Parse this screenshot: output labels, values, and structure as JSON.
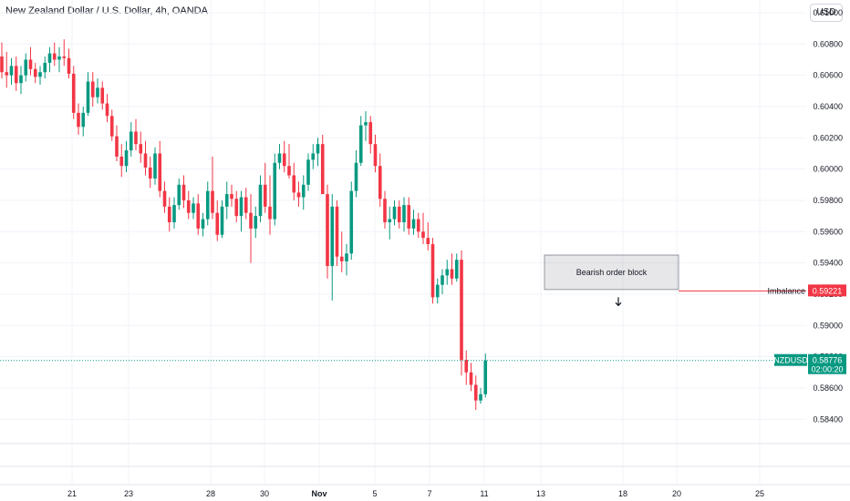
{
  "header": {
    "title": "New Zealand Dollar / U.S. Dollar, 4h, OANDA",
    "currency_button": "USD"
  },
  "chart_data": {
    "type": "candlestick",
    "title": "New Zealand Dollar / U.S. Dollar, 4h, OANDA",
    "ylim": [
      0.5825,
      0.61
    ],
    "y_ticks": [
      "0.61000",
      "0.60800",
      "0.60600",
      "0.60400",
      "0.60200",
      "0.60000",
      "0.59800",
      "0.59600",
      "0.59400",
      "0.59200",
      "0.59000",
      "0.58800",
      "0.58600",
      "0.58400"
    ],
    "x_ticks": [
      "21",
      "23",
      "28",
      "30",
      "Nov",
      "5",
      "7",
      "11",
      "13",
      "18",
      "20",
      "25"
    ],
    "grid": true,
    "colors": {
      "up": "#089981",
      "down": "#f23645",
      "grid": "#f0f3fa",
      "axis_text": "#131722"
    },
    "candles": [
      [
        0.6072,
        0.6081,
        0.6058,
        0.6062
      ],
      [
        0.6062,
        0.6075,
        0.6052,
        0.606
      ],
      [
        0.606,
        0.6071,
        0.6054,
        0.6066
      ],
      [
        0.6066,
        0.6072,
        0.605,
        0.6055
      ],
      [
        0.6055,
        0.6066,
        0.6048,
        0.606
      ],
      [
        0.606,
        0.6074,
        0.6056,
        0.607
      ],
      [
        0.607,
        0.6078,
        0.606,
        0.6064
      ],
      [
        0.6064,
        0.6068,
        0.6055,
        0.6059
      ],
      [
        0.6059,
        0.6066,
        0.6054,
        0.6062
      ],
      [
        0.6062,
        0.6072,
        0.6058,
        0.6068
      ],
      [
        0.6068,
        0.6078,
        0.6062,
        0.6074
      ],
      [
        0.6074,
        0.6081,
        0.6066,
        0.607
      ],
      [
        0.607,
        0.6078,
        0.6062,
        0.6072
      ],
      [
        0.6072,
        0.6083,
        0.6066,
        0.6071
      ],
      [
        0.6071,
        0.6077,
        0.6058,
        0.6061
      ],
      [
        0.6061,
        0.6066,
        0.6032,
        0.6036
      ],
      [
        0.6036,
        0.6042,
        0.6022,
        0.6027
      ],
      [
        0.6027,
        0.604,
        0.6021,
        0.6036
      ],
      [
        0.6036,
        0.6062,
        0.6034,
        0.6056
      ],
      [
        0.6056,
        0.6062,
        0.604,
        0.6046
      ],
      [
        0.6046,
        0.6058,
        0.6042,
        0.6052
      ],
      [
        0.6052,
        0.6056,
        0.6038,
        0.6042
      ],
      [
        0.6042,
        0.6048,
        0.603,
        0.6034
      ],
      [
        0.6034,
        0.6038,
        0.6018,
        0.6021
      ],
      [
        0.6021,
        0.6028,
        0.6005,
        0.6008
      ],
      [
        0.6008,
        0.6016,
        0.5995,
        0.6002
      ],
      [
        0.6002,
        0.6018,
        0.5998,
        0.6012
      ],
      [
        0.6012,
        0.603,
        0.6008,
        0.6024
      ],
      [
        0.6024,
        0.6032,
        0.6012,
        0.6016
      ],
      [
        0.6016,
        0.6024,
        0.6004,
        0.601
      ],
      [
        0.601,
        0.6018,
        0.5996,
        0.6001
      ],
      [
        0.6001,
        0.6008,
        0.5988,
        0.5994
      ],
      [
        0.5994,
        0.6014,
        0.599,
        0.601
      ],
      [
        0.601,
        0.6018,
        0.5982,
        0.5986
      ],
      [
        0.5986,
        0.5992,
        0.5972,
        0.5976
      ],
      [
        0.5976,
        0.5982,
        0.596,
        0.5966
      ],
      [
        0.5966,
        0.5982,
        0.5962,
        0.5977
      ],
      [
        0.5977,
        0.5994,
        0.5974,
        0.599
      ],
      [
        0.599,
        0.5996,
        0.5975,
        0.598
      ],
      [
        0.598,
        0.5986,
        0.5968,
        0.5972
      ],
      [
        0.5972,
        0.5982,
        0.5968,
        0.5978
      ],
      [
        0.5978,
        0.5984,
        0.5958,
        0.5962
      ],
      [
        0.5962,
        0.5972,
        0.5957,
        0.5968
      ],
      [
        0.5968,
        0.5992,
        0.5964,
        0.5986
      ],
      [
        0.5986,
        0.6008,
        0.5968,
        0.5972
      ],
      [
        0.5972,
        0.598,
        0.5954,
        0.5958
      ],
      [
        0.5958,
        0.598,
        0.5956,
        0.5976
      ],
      [
        0.5976,
        0.5992,
        0.5968,
        0.5984
      ],
      [
        0.5984,
        0.599,
        0.5976,
        0.5981
      ],
      [
        0.5981,
        0.5986,
        0.5966,
        0.597
      ],
      [
        0.597,
        0.5986,
        0.596,
        0.5982
      ],
      [
        0.5982,
        0.5988,
        0.5968,
        0.5972
      ],
      [
        0.5972,
        0.5984,
        0.594,
        0.5962
      ],
      [
        0.5962,
        0.5976,
        0.5956,
        0.597
      ],
      [
        0.597,
        0.5996,
        0.5966,
        0.599
      ],
      [
        0.599,
        0.6004,
        0.5972,
        0.5976
      ],
      [
        0.5976,
        0.5996,
        0.5958,
        0.5968
      ],
      [
        0.5968,
        0.601,
        0.5964,
        0.6004
      ],
      [
        0.6004,
        0.6016,
        0.6,
        0.601
      ],
      [
        0.601,
        0.6018,
        0.5998,
        0.6002
      ],
      [
        0.6002,
        0.6016,
        0.5994,
        0.5996
      ],
      [
        0.5996,
        0.6004,
        0.598,
        0.5985
      ],
      [
        0.5985,
        0.5992,
        0.5976,
        0.5982
      ],
      [
        0.5982,
        0.5996,
        0.5974,
        0.599
      ],
      [
        0.599,
        0.601,
        0.5986,
        0.6006
      ],
      [
        0.6006,
        0.6016,
        0.6,
        0.601
      ],
      [
        0.601,
        0.602,
        0.6002,
        0.6016
      ],
      [
        0.6016,
        0.6022,
        0.5986,
        0.5984
      ],
      [
        0.5984,
        0.599,
        0.593,
        0.5938
      ],
      [
        0.5938,
        0.5984,
        0.5916,
        0.5976
      ],
      [
        0.5976,
        0.598,
        0.5938,
        0.5944
      ],
      [
        0.5944,
        0.596,
        0.5934,
        0.5941
      ],
      [
        0.5941,
        0.5952,
        0.5932,
        0.5946
      ],
      [
        0.5946,
        0.5992,
        0.5942,
        0.5986
      ],
      [
        0.5986,
        0.6012,
        0.5982,
        0.6004
      ],
      [
        0.6004,
        0.6034,
        0.6002,
        0.6028
      ],
      [
        0.6028,
        0.6037,
        0.6018,
        0.603
      ],
      [
        0.603,
        0.6034,
        0.601,
        0.6016
      ],
      [
        0.6016,
        0.6022,
        0.5998,
        0.6002
      ],
      [
        0.6002,
        0.601,
        0.5976,
        0.5981
      ],
      [
        0.5981,
        0.5986,
        0.5962,
        0.5966
      ],
      [
        0.5966,
        0.5976,
        0.5955,
        0.5968
      ],
      [
        0.5968,
        0.598,
        0.5964,
        0.5976
      ],
      [
        0.5976,
        0.598,
        0.5962,
        0.5966
      ],
      [
        0.5966,
        0.5982,
        0.596,
        0.5977
      ],
      [
        0.5977,
        0.5982,
        0.5958,
        0.5962
      ],
      [
        0.5962,
        0.5974,
        0.5958,
        0.5968
      ],
      [
        0.5968,
        0.5972,
        0.5956,
        0.596
      ],
      [
        0.596,
        0.5972,
        0.5952,
        0.5956
      ],
      [
        0.5956,
        0.5966,
        0.5948,
        0.5952
      ],
      [
        0.5952,
        0.5956,
        0.5914,
        0.5918
      ],
      [
        0.5918,
        0.593,
        0.5914,
        0.5926
      ],
      [
        0.5926,
        0.5936,
        0.592,
        0.5932
      ],
      [
        0.5932,
        0.5942,
        0.5926,
        0.5936
      ],
      [
        0.5936,
        0.5946,
        0.5926,
        0.593
      ],
      [
        0.593,
        0.5946,
        0.5928,
        0.5942
      ],
      [
        0.5942,
        0.5948,
        0.5868,
        0.5878
      ],
      [
        0.5878,
        0.5884,
        0.5862,
        0.587
      ],
      [
        0.587,
        0.5876,
        0.5858,
        0.5862
      ],
      [
        0.5862,
        0.5868,
        0.5846,
        0.5852
      ],
      [
        0.5852,
        0.586,
        0.585,
        0.5856
      ],
      [
        0.5856,
        0.5882,
        0.5854,
        0.58776
      ]
    ],
    "current_price": {
      "symbol": "NZDUSD",
      "value": "0.58776",
      "countdown": "02:00:20"
    },
    "annotations": [
      {
        "type": "zone",
        "label": "Bearish order block",
        "price_top": 0.5945,
        "price_bottom": 0.5923
      },
      {
        "type": "level",
        "label": "Imbalance",
        "price": 0.59221,
        "value": "0.59221"
      },
      {
        "type": "arrow",
        "direction": "down"
      }
    ]
  }
}
